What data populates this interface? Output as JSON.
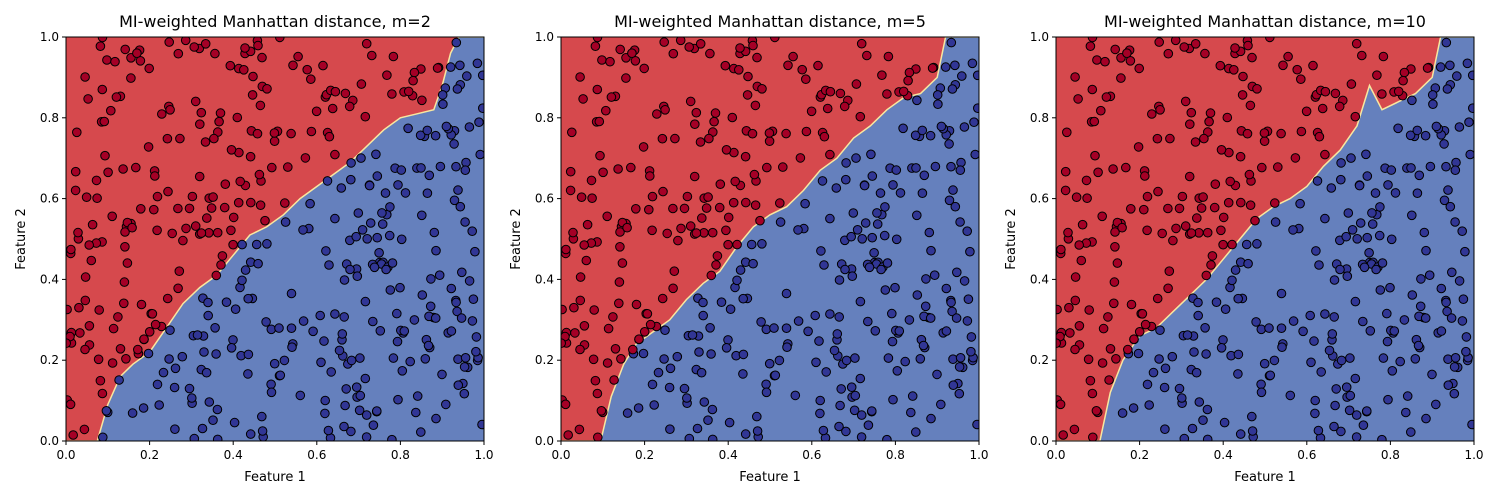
{
  "colors": {
    "class0_region": "#d6494d",
    "class1_region": "#6580bd",
    "class0_point": "#a50026",
    "class1_point": "#313695",
    "boundary": "#f8e7a0"
  },
  "chart_data": [
    {
      "type": "scatter",
      "title": "MI-weighted Manhattan distance, m=2",
      "xlabel": "Feature 1",
      "ylabel": "Feature 2",
      "xlim": [
        0,
        1
      ],
      "ylim": [
        0,
        1
      ],
      "xticks": [
        "0.0",
        "0.2",
        "0.4",
        "0.6",
        "0.8",
        "1.0"
      ],
      "yticks": [
        "0.0",
        "0.2",
        "0.4",
        "0.6",
        "0.8",
        "1.0"
      ],
      "decision_boundary": {
        "x": [
          0.0,
          0.075,
          0.1,
          0.13,
          0.16,
          0.2,
          0.24,
          0.28,
          0.32,
          0.36,
          0.4,
          0.44,
          0.48,
          0.52,
          0.56,
          0.6,
          0.64,
          0.68,
          0.72,
          0.76,
          0.8,
          0.84,
          0.88,
          0.9,
          0.92,
          0.94,
          0.96,
          1.0
        ],
        "y": [
          0.0,
          0.0,
          0.09,
          0.16,
          0.19,
          0.22,
          0.28,
          0.34,
          0.38,
          0.41,
          0.46,
          0.51,
          0.53,
          0.56,
          0.6,
          0.63,
          0.66,
          0.69,
          0.73,
          0.77,
          0.8,
          0.81,
          0.82,
          0.88,
          0.96,
          1.0,
          1.0,
          1.0
        ]
      },
      "legend": "none",
      "grid": false
    },
    {
      "type": "scatter",
      "title": "MI-weighted Manhattan distance, m=5",
      "xlabel": "Feature 1",
      "ylabel": "Feature 2",
      "xlim": [
        0,
        1
      ],
      "ylim": [
        0,
        1
      ],
      "xticks": [
        "0.0",
        "0.2",
        "0.4",
        "0.6",
        "0.8",
        "1.0"
      ],
      "yticks": [
        "0.0",
        "0.2",
        "0.4",
        "0.6",
        "0.8",
        "1.0"
      ],
      "decision_boundary": {
        "x": [
          0.0,
          0.095,
          0.12,
          0.15,
          0.18,
          0.22,
          0.26,
          0.3,
          0.34,
          0.38,
          0.42,
          0.46,
          0.5,
          0.54,
          0.58,
          0.62,
          0.66,
          0.7,
          0.74,
          0.78,
          0.82,
          0.86,
          0.9,
          0.92,
          0.94,
          1.0
        ],
        "y": [
          0.0,
          0.0,
          0.11,
          0.19,
          0.24,
          0.27,
          0.3,
          0.35,
          0.39,
          0.42,
          0.48,
          0.53,
          0.56,
          0.58,
          0.62,
          0.67,
          0.7,
          0.75,
          0.78,
          0.82,
          0.85,
          0.86,
          0.9,
          1.0,
          1.0,
          1.0
        ]
      },
      "legend": "none",
      "grid": false
    },
    {
      "type": "scatter",
      "title": "MI-weighted Manhattan distance, m=10",
      "xlabel": "Feature 1",
      "ylabel": "Feature 2",
      "xlim": [
        0,
        1
      ],
      "ylim": [
        0,
        1
      ],
      "xticks": [
        "0.0",
        "0.2",
        "0.4",
        "0.6",
        "0.8",
        "1.0"
      ],
      "yticks": [
        "0.0",
        "0.2",
        "0.4",
        "0.6",
        "0.8",
        "1.0"
      ],
      "decision_boundary": {
        "x": [
          0.0,
          0.105,
          0.13,
          0.16,
          0.2,
          0.24,
          0.28,
          0.32,
          0.36,
          0.4,
          0.44,
          0.48,
          0.52,
          0.56,
          0.6,
          0.64,
          0.68,
          0.72,
          0.75,
          0.78,
          0.82,
          0.86,
          0.9,
          0.92,
          0.96,
          1.0
        ],
        "y": [
          0.0,
          0.0,
          0.12,
          0.2,
          0.26,
          0.28,
          0.32,
          0.36,
          0.4,
          0.45,
          0.5,
          0.55,
          0.58,
          0.6,
          0.63,
          0.68,
          0.72,
          0.78,
          0.88,
          0.82,
          0.84,
          0.86,
          0.9,
          1.0,
          1.0,
          1.0
        ]
      },
      "legend": "none",
      "grid": false
    }
  ]
}
